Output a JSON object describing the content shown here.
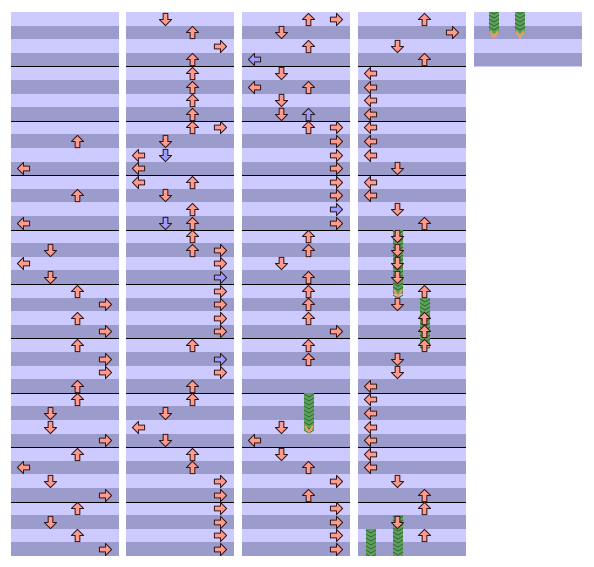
{
  "chart_title": "",
  "colors": {
    "band_light": "#cccaff",
    "band_dark": "#9c9ccc",
    "measure_line": "#000000",
    "note_red_fill": "#ff9a8c",
    "note_blue_fill": "#9c9cff",
    "note_outline": "#301818",
    "hold_fill": "#5fa05f",
    "hold_stripe": "#2e6b2e",
    "hold_tail": "#f0a050"
  },
  "lane_directions": [
    "left",
    "down",
    "up",
    "right"
  ],
  "columns": [
    {
      "name": "column-1",
      "notes": [
        {
          "lane": 2,
          "row": 9,
          "color": "red"
        },
        {
          "lane": 0,
          "row": 11,
          "color": "red"
        },
        {
          "lane": 2,
          "row": 13,
          "color": "red"
        },
        {
          "lane": 0,
          "row": 15,
          "color": "red"
        },
        {
          "lane": 1,
          "row": 17,
          "color": "red"
        },
        {
          "lane": 0,
          "row": 18,
          "color": "red"
        },
        {
          "lane": 1,
          "row": 19,
          "color": "red"
        },
        {
          "lane": 2,
          "row": 20,
          "color": "red"
        },
        {
          "lane": 3,
          "row": 21,
          "color": "red"
        },
        {
          "lane": 2,
          "row": 22,
          "color": "red"
        },
        {
          "lane": 3,
          "row": 23,
          "color": "red"
        },
        {
          "lane": 2,
          "row": 24,
          "color": "red"
        },
        {
          "lane": 3,
          "row": 25,
          "color": "red"
        },
        {
          "lane": 3,
          "row": 26,
          "color": "red"
        },
        {
          "lane": 2,
          "row": 27,
          "color": "red"
        },
        {
          "lane": 2,
          "row": 28,
          "color": "red"
        },
        {
          "lane": 1,
          "row": 29,
          "color": "red"
        },
        {
          "lane": 1,
          "row": 30,
          "color": "red"
        },
        {
          "lane": 3,
          "row": 31,
          "color": "red"
        },
        {
          "lane": 2,
          "row": 32,
          "color": "red"
        },
        {
          "lane": 0,
          "row": 33,
          "color": "red"
        },
        {
          "lane": 1,
          "row": 34,
          "color": "red"
        },
        {
          "lane": 3,
          "row": 35,
          "color": "red"
        },
        {
          "lane": 2,
          "row": 36,
          "color": "red"
        },
        {
          "lane": 1,
          "row": 37,
          "color": "red"
        },
        {
          "lane": 2,
          "row": 38,
          "color": "red"
        },
        {
          "lane": 3,
          "row": 39,
          "color": "red"
        },
        {
          "lane": 2,
          "row": 40,
          "color": "red"
        }
      ],
      "holds": []
    },
    {
      "name": "column-2",
      "notes": [
        {
          "lane": 1,
          "row": 0,
          "color": "red"
        },
        {
          "lane": 2,
          "row": 1,
          "color": "red"
        },
        {
          "lane": 3,
          "row": 2,
          "color": "red"
        },
        {
          "lane": 2,
          "row": 3,
          "color": "red"
        },
        {
          "lane": 2,
          "row": 4,
          "color": "red"
        },
        {
          "lane": 2,
          "row": 5,
          "color": "red"
        },
        {
          "lane": 2,
          "row": 6,
          "color": "red"
        },
        {
          "lane": 2,
          "row": 7,
          "color": "red"
        },
        {
          "lane": 2,
          "row": 8,
          "color": "red"
        },
        {
          "lane": 3,
          "row": 8,
          "color": "red"
        },
        {
          "lane": 1,
          "row": 9,
          "color": "red"
        },
        {
          "lane": 0,
          "row": 10,
          "color": "red"
        },
        {
          "lane": 1,
          "row": 10,
          "color": "blue"
        },
        {
          "lane": 0,
          "row": 11,
          "color": "red"
        },
        {
          "lane": 0,
          "row": 12,
          "color": "red"
        },
        {
          "lane": 2,
          "row": 12,
          "color": "red"
        },
        {
          "lane": 1,
          "row": 13,
          "color": "red"
        },
        {
          "lane": 2,
          "row": 14,
          "color": "red"
        },
        {
          "lane": 1,
          "row": 15,
          "color": "blue"
        },
        {
          "lane": 2,
          "row": 15,
          "color": "red"
        },
        {
          "lane": 2,
          "row": 16,
          "color": "red"
        },
        {
          "lane": 2,
          "row": 17,
          "color": "red"
        },
        {
          "lane": 3,
          "row": 17,
          "color": "red"
        },
        {
          "lane": 3,
          "row": 18,
          "color": "red"
        },
        {
          "lane": 3,
          "row": 19,
          "color": "blue"
        },
        {
          "lane": 3,
          "row": 20,
          "color": "red"
        },
        {
          "lane": 3,
          "row": 21,
          "color": "red"
        },
        {
          "lane": 3,
          "row": 22,
          "color": "red"
        },
        {
          "lane": 3,
          "row": 23,
          "color": "red"
        },
        {
          "lane": 2,
          "row": 24,
          "color": "red"
        },
        {
          "lane": 3,
          "row": 25,
          "color": "blue"
        },
        {
          "lane": 3,
          "row": 26,
          "color": "red"
        },
        {
          "lane": 2,
          "row": 27,
          "color": "red"
        },
        {
          "lane": 2,
          "row": 28,
          "color": "red"
        },
        {
          "lane": 1,
          "row": 29,
          "color": "red"
        },
        {
          "lane": 0,
          "row": 30,
          "color": "red"
        },
        {
          "lane": 1,
          "row": 31,
          "color": "red"
        },
        {
          "lane": 2,
          "row": 32,
          "color": "red"
        },
        {
          "lane": 2,
          "row": 33,
          "color": "red"
        },
        {
          "lane": 3,
          "row": 34,
          "color": "red"
        },
        {
          "lane": 3,
          "row": 35,
          "color": "red"
        },
        {
          "lane": 3,
          "row": 36,
          "color": "red"
        },
        {
          "lane": 3,
          "row": 37,
          "color": "red"
        },
        {
          "lane": 3,
          "row": 38,
          "color": "red"
        },
        {
          "lane": 3,
          "row": 39,
          "color": "red"
        },
        {
          "lane": 3,
          "row": 40,
          "color": "red"
        }
      ],
      "holds": []
    },
    {
      "name": "column-3",
      "notes": [
        {
          "lane": 2,
          "row": 0,
          "color": "red"
        },
        {
          "lane": 3,
          "row": 0,
          "color": "red"
        },
        {
          "lane": 1,
          "row": 1,
          "color": "red"
        },
        {
          "lane": 2,
          "row": 2,
          "color": "red"
        },
        {
          "lane": 0,
          "row": 3,
          "color": "blue"
        },
        {
          "lane": 1,
          "row": 4,
          "color": "red"
        },
        {
          "lane": 0,
          "row": 5,
          "color": "red"
        },
        {
          "lane": 2,
          "row": 5,
          "color": "red"
        },
        {
          "lane": 1,
          "row": 6,
          "color": "red"
        },
        {
          "lane": 1,
          "row": 7,
          "color": "red"
        },
        {
          "lane": 2,
          "row": 7,
          "color": "blue"
        },
        {
          "lane": 2,
          "row": 8,
          "color": "red"
        },
        {
          "lane": 3,
          "row": 8,
          "color": "red"
        },
        {
          "lane": 3,
          "row": 9,
          "color": "red"
        },
        {
          "lane": 3,
          "row": 10,
          "color": "red"
        },
        {
          "lane": 3,
          "row": 11,
          "color": "red"
        },
        {
          "lane": 3,
          "row": 12,
          "color": "red"
        },
        {
          "lane": 3,
          "row": 13,
          "color": "red"
        },
        {
          "lane": 3,
          "row": 14,
          "color": "blue"
        },
        {
          "lane": 3,
          "row": 15,
          "color": "red"
        },
        {
          "lane": 2,
          "row": 16,
          "color": "red"
        },
        {
          "lane": 2,
          "row": 17,
          "color": "red"
        },
        {
          "lane": 1,
          "row": 18,
          "color": "red"
        },
        {
          "lane": 2,
          "row": 19,
          "color": "red"
        },
        {
          "lane": 2,
          "row": 20,
          "color": "red"
        },
        {
          "lane": 2,
          "row": 21,
          "color": "red"
        },
        {
          "lane": 2,
          "row": 22,
          "color": "red"
        },
        {
          "lane": 3,
          "row": 23,
          "color": "red"
        },
        {
          "lane": 2,
          "row": 24,
          "color": "red"
        },
        {
          "lane": 2,
          "row": 25,
          "color": "red"
        },
        {
          "lane": 1,
          "row": 30,
          "color": "red"
        },
        {
          "lane": 0,
          "row": 31,
          "color": "red"
        },
        {
          "lane": 1,
          "row": 32,
          "color": "red"
        },
        {
          "lane": 2,
          "row": 33,
          "color": "red"
        },
        {
          "lane": 3,
          "row": 34,
          "color": "red"
        },
        {
          "lane": 2,
          "row": 35,
          "color": "red"
        },
        {
          "lane": 3,
          "row": 36,
          "color": "red"
        },
        {
          "lane": 3,
          "row": 37,
          "color": "red"
        },
        {
          "lane": 3,
          "row": 38,
          "color": "red"
        },
        {
          "lane": 3,
          "row": 39,
          "color": "red"
        },
        {
          "lane": 3,
          "row": 40,
          "color": "red"
        }
      ],
      "holds": [
        {
          "lane": 2,
          "start": 28,
          "end": 30
        }
      ]
    },
    {
      "name": "column-4",
      "notes": [
        {
          "lane": 2,
          "row": 0,
          "color": "red"
        },
        {
          "lane": 3,
          "row": 1,
          "color": "red"
        },
        {
          "lane": 1,
          "row": 2,
          "color": "red"
        },
        {
          "lane": 2,
          "row": 3,
          "color": "red"
        },
        {
          "lane": 0,
          "row": 4,
          "color": "red"
        },
        {
          "lane": 0,
          "row": 5,
          "color": "red"
        },
        {
          "lane": 0,
          "row": 6,
          "color": "red"
        },
        {
          "lane": 0,
          "row": 7,
          "color": "red"
        },
        {
          "lane": 0,
          "row": 8,
          "color": "red"
        },
        {
          "lane": 0,
          "row": 9,
          "color": "red"
        },
        {
          "lane": 0,
          "row": 10,
          "color": "red"
        },
        {
          "lane": 1,
          "row": 11,
          "color": "red"
        },
        {
          "lane": 0,
          "row": 12,
          "color": "red"
        },
        {
          "lane": 0,
          "row": 13,
          "color": "red"
        },
        {
          "lane": 1,
          "row": 14,
          "color": "red"
        },
        {
          "lane": 2,
          "row": 15,
          "color": "red"
        },
        {
          "lane": 1,
          "row": 16,
          "color": "red"
        },
        {
          "lane": 1,
          "row": 17,
          "color": "red"
        },
        {
          "lane": 1,
          "row": 18,
          "color": "red"
        },
        {
          "lane": 1,
          "row": 19,
          "color": "red"
        },
        {
          "lane": 2,
          "row": 20,
          "color": "red"
        },
        {
          "lane": 1,
          "row": 21,
          "color": "red"
        },
        {
          "lane": 2,
          "row": 22,
          "color": "red"
        },
        {
          "lane": 2,
          "row": 23,
          "color": "red"
        },
        {
          "lane": 2,
          "row": 24,
          "color": "red"
        },
        {
          "lane": 1,
          "row": 25,
          "color": "red"
        },
        {
          "lane": 1,
          "row": 26,
          "color": "red"
        },
        {
          "lane": 0,
          "row": 27,
          "color": "red"
        },
        {
          "lane": 0,
          "row": 28,
          "color": "red"
        },
        {
          "lane": 0,
          "row": 29,
          "color": "red"
        },
        {
          "lane": 0,
          "row": 30,
          "color": "red"
        },
        {
          "lane": 0,
          "row": 31,
          "color": "red"
        },
        {
          "lane": 0,
          "row": 32,
          "color": "red"
        },
        {
          "lane": 0,
          "row": 33,
          "color": "red"
        },
        {
          "lane": 1,
          "row": 34,
          "color": "red"
        },
        {
          "lane": 2,
          "row": 35,
          "color": "red"
        },
        {
          "lane": 2,
          "row": 36,
          "color": "red"
        },
        {
          "lane": 1,
          "row": 37,
          "color": "red"
        },
        {
          "lane": 2,
          "row": 38,
          "color": "red"
        }
      ],
      "holds": [
        {
          "lane": 1,
          "start": 16,
          "end": 20
        },
        {
          "lane": 2,
          "start": 21,
          "end": 24
        },
        {
          "lane": 0,
          "start": 38,
          "end": 40
        },
        {
          "lane": 1,
          "start": 37,
          "end": 40
        }
      ]
    }
  ],
  "mini_column": {
    "name": "mini-column",
    "notes": [],
    "holds": [
      {
        "lane": 1,
        "start": 0,
        "end": 1
      },
      {
        "lane": 3,
        "start": 0,
        "end": 1
      }
    ]
  }
}
